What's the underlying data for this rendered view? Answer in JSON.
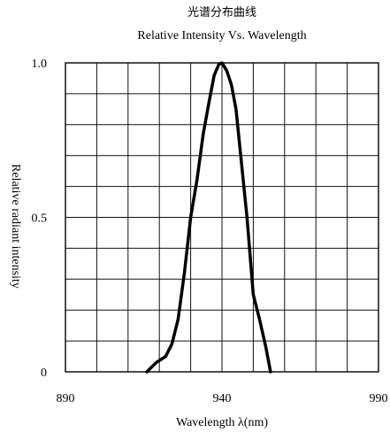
{
  "chart_data": {
    "type": "line",
    "title": "光谱分布曲线",
    "subtitle": "Relative Intensity Vs. Wavelength",
    "xlabel": "Wavelength λ(nm)",
    "ylabel": "Relative radiant intensity",
    "xlim": [
      890,
      990
    ],
    "ylim": [
      0,
      1.0
    ],
    "x_ticks": [
      "890",
      "940",
      "990"
    ],
    "y_ticks": [
      "0",
      "0.5",
      "1.0"
    ],
    "grid": true,
    "series": [
      {
        "x": [
          916,
          919,
          922,
          924,
          926,
          928,
          930,
          932,
          934,
          936,
          937.5,
          939,
          940,
          941.5,
          943,
          944.5,
          946,
          948,
          950,
          952,
          954,
          955.5
        ],
        "y": [
          0.0,
          0.03,
          0.05,
          0.09,
          0.17,
          0.32,
          0.5,
          0.62,
          0.77,
          0.88,
          0.96,
          0.995,
          1.0,
          0.975,
          0.93,
          0.85,
          0.7,
          0.5,
          0.25,
          0.17,
          0.08,
          0.0
        ]
      }
    ]
  }
}
